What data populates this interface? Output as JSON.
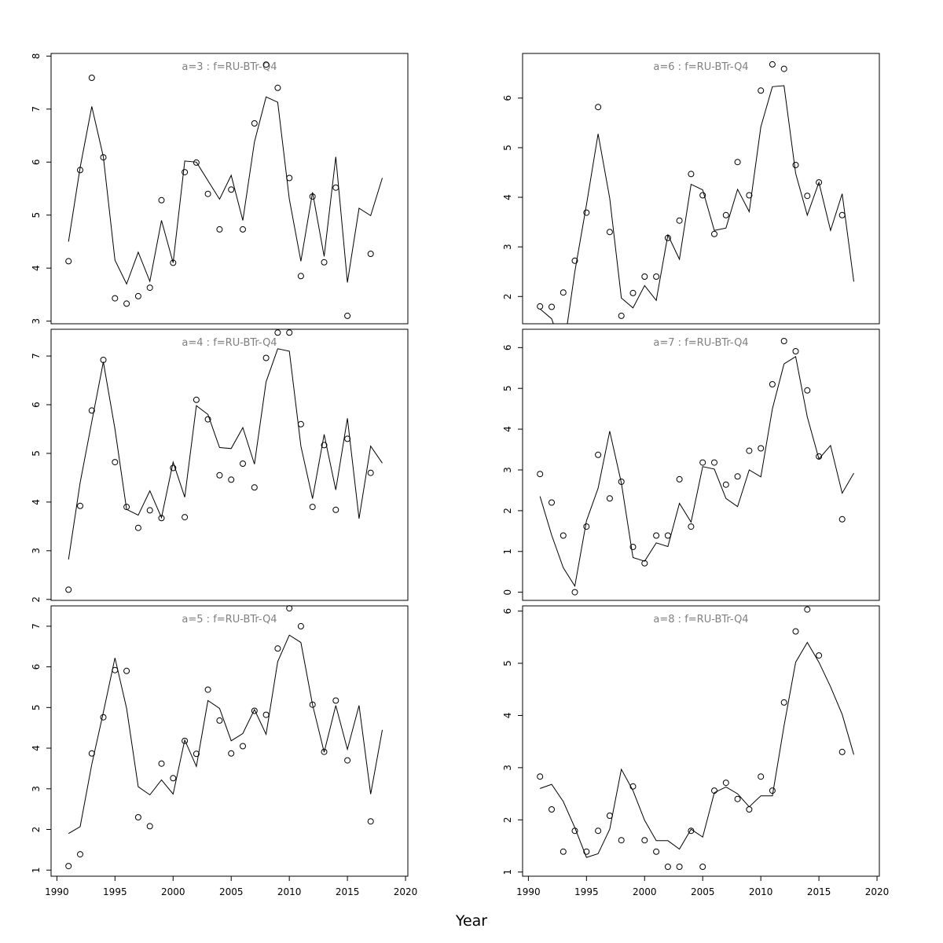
{
  "chart_data": {
    "type": "line",
    "xlabel": "Year",
    "xticks": [
      1990,
      1995,
      2000,
      2005,
      2010,
      2015,
      2020
    ],
    "xlim": [
      1989.5,
      2020.2
    ],
    "panels": [
      {
        "title": "a=3  :  f=RU-BTr-Q4",
        "ylim": [
          2.95,
          8.05
        ],
        "yticks": [
          3,
          4,
          5,
          6,
          7,
          8
        ],
        "series": [
          {
            "type": "line",
            "x": [
              1991,
              1992,
              1993,
              1994,
              1995,
              1996,
              1997,
              1998,
              1999,
              2000,
              2001,
              2002,
              2003,
              2004,
              2005,
              2006,
              2007,
              2008,
              2009,
              2010,
              2011,
              2012,
              2013,
              2014,
              2015,
              2016,
              2017,
              2018
            ],
            "y": [
              4.5,
              5.9,
              7.05,
              6.1,
              4.15,
              3.7,
              4.3,
              3.75,
              4.9,
              4.1,
              6.02,
              6.0,
              5.65,
              5.3,
              5.75,
              4.9,
              6.38,
              7.23,
              7.13,
              5.3,
              4.13,
              5.43,
              4.22,
              6.1,
              3.73,
              5.13,
              4.99,
              5.7
            ]
          },
          {
            "type": "points",
            "x": [
              1991,
              1992,
              1993,
              1994,
              1995,
              1996,
              1997,
              1998,
              1999,
              2000,
              2001,
              2002,
              2003,
              2004,
              2005,
              2006,
              2007,
              2008,
              2009,
              2010,
              2011,
              2012,
              2013,
              2014,
              2015,
              2017
            ],
            "y": [
              4.13,
              5.85,
              7.59,
              6.09,
              3.43,
              3.33,
              3.47,
              3.63,
              5.28,
              4.1,
              5.81,
              5.99,
              5.4,
              4.73,
              5.48,
              4.73,
              6.73,
              7.84,
              7.4,
              5.7,
              3.85,
              5.35,
              4.11,
              5.52,
              3.1,
              4.27
            ]
          }
        ]
      },
      {
        "title": "a=4  :  f=RU-BTr-Q4",
        "ylim": [
          1.98,
          7.55
        ],
        "yticks": [
          2,
          3,
          4,
          5,
          6,
          7
        ],
        "series": [
          {
            "type": "line",
            "x": [
              1991,
              1992,
              1993,
              1994,
              1995,
              1996,
              1997,
              1998,
              1999,
              2000,
              2001,
              2002,
              2003,
              2004,
              2005,
              2006,
              2007,
              2008,
              2009,
              2010,
              2011,
              2012,
              2013,
              2014,
              2015,
              2016,
              2017,
              2018
            ],
            "y": [
              2.82,
              4.4,
              5.65,
              6.88,
              5.5,
              3.85,
              3.73,
              4.23,
              3.68,
              4.82,
              4.1,
              5.98,
              5.8,
              5.12,
              5.1,
              5.53,
              4.78,
              6.47,
              7.15,
              7.1,
              5.15,
              4.07,
              5.39,
              4.25,
              5.72,
              3.66,
              5.15,
              4.8
            ]
          },
          {
            "type": "points",
            "x": [
              1991,
              1992,
              1993,
              1994,
              1995,
              1996,
              1997,
              1998,
              1999,
              2000,
              2001,
              2002,
              2003,
              2004,
              2005,
              2006,
              2007,
              2008,
              2009,
              2010,
              2011,
              2012,
              2013,
              2014,
              2015,
              2017
            ],
            "y": [
              2.2,
              3.92,
              5.88,
              6.92,
              4.82,
              3.9,
              3.47,
              3.83,
              3.67,
              4.7,
              3.69,
              6.1,
              5.7,
              4.55,
              4.46,
              4.79,
              4.3,
              6.96,
              7.48,
              7.48,
              5.6,
              3.9,
              5.17,
              3.84,
              5.3,
              4.6
            ]
          }
        ]
      },
      {
        "title": "a=5  :  f=RU-BTr-Q4",
        "ylim": [
          0.85,
          7.5
        ],
        "yticks": [
          1,
          2,
          3,
          4,
          5,
          6,
          7
        ],
        "series": [
          {
            "type": "line",
            "x": [
              1991,
              1992,
              1993,
              1994,
              1995,
              1996,
              1997,
              1998,
              1999,
              2000,
              2001,
              2002,
              2003,
              2004,
              2005,
              2006,
              2007,
              2008,
              2009,
              2010,
              2011,
              2012,
              2013,
              2014,
              2015,
              2016,
              2017,
              2018
            ],
            "y": [
              1.9,
              2.07,
              3.6,
              4.88,
              6.22,
              4.98,
              3.05,
              2.85,
              3.22,
              2.87,
              4.2,
              3.55,
              5.17,
              4.98,
              4.18,
              4.36,
              4.95,
              4.34,
              6.13,
              6.78,
              6.6,
              5.07,
              3.9,
              5.05,
              3.97,
              5.05,
              2.87,
              4.45
            ]
          },
          {
            "type": "points",
            "x": [
              1991,
              1992,
              1993,
              1994,
              1995,
              1996,
              1997,
              1998,
              1999,
              2000,
              2001,
              2002,
              2003,
              2004,
              2005,
              2006,
              2007,
              2008,
              2009,
              2010,
              2011,
              2012,
              2013,
              2014,
              2015,
              2017
            ],
            "y": [
              1.1,
              1.39,
              3.87,
              4.76,
              5.92,
              5.9,
              2.3,
              2.08,
              3.62,
              3.26,
              4.18,
              3.86,
              5.44,
              4.68,
              3.87,
              4.05,
              4.92,
              4.82,
              6.45,
              7.44,
              7.0,
              5.07,
              3.91,
              5.17,
              3.7,
              2.2
            ]
          }
        ]
      },
      {
        "title": "a=6  :  f=RU-BTr-Q4",
        "ylim": [
          1.45,
          6.9
        ],
        "yticks": [
          2,
          3,
          4,
          5,
          6
        ],
        "series": [
          {
            "type": "line",
            "x": [
              1991,
              1992,
              1993,
              1994,
              1995,
              1996,
              1997,
              1998,
              1999,
              2000,
              2001,
              2002,
              2003,
              2004,
              2005,
              2006,
              2007,
              2008,
              2009,
              2010,
              2011,
              2012,
              2013,
              2014,
              2015,
              2016,
              2017,
              2018
            ],
            "y": [
              1.75,
              1.55,
              0.88,
              2.5,
              3.85,
              5.28,
              3.98,
              1.97,
              1.77,
              2.22,
              1.92,
              3.24,
              2.75,
              4.26,
              4.15,
              3.33,
              3.38,
              4.16,
              3.71,
              5.42,
              6.23,
              6.25,
              4.48,
              3.64,
              4.3,
              3.33,
              4.07,
              2.3
            ]
          },
          {
            "type": "points",
            "x": [
              1991,
              1992,
              1993,
              1994,
              1995,
              1996,
              1997,
              1998,
              1999,
              2000,
              2001,
              2002,
              2003,
              2004,
              2005,
              2006,
              2007,
              2008,
              2009,
              2010,
              2011,
              2012,
              2013,
              2014,
              2015,
              2017
            ],
            "y": [
              1.8,
              1.79,
              2.08,
              2.72,
              3.69,
              5.82,
              3.3,
              1.61,
              2.07,
              2.4,
              2.4,
              3.18,
              3.53,
              4.47,
              4.04,
              3.26,
              3.64,
              4.71,
              4.04,
              6.15,
              6.68,
              6.59,
              4.65,
              4.03,
              4.3,
              3.64
            ]
          }
        ]
      },
      {
        "title": "a=7  :  f=RU-BTr-Q4",
        "ylim": [
          -0.2,
          6.45
        ],
        "yticks": [
          0,
          1,
          2,
          3,
          4,
          5,
          6
        ],
        "series": [
          {
            "type": "line",
            "x": [
              1991,
              1992,
              1993,
              1994,
              1995,
              1996,
              1997,
              1998,
              1999,
              2000,
              2001,
              2002,
              2003,
              2004,
              2005,
              2006,
              2007,
              2008,
              2009,
              2010,
              2011,
              2012,
              2013,
              2014,
              2015,
              2016,
              2017,
              2018
            ],
            "y": [
              2.35,
              1.4,
              0.6,
              0.15,
              1.75,
              2.55,
              3.95,
              2.68,
              0.85,
              0.76,
              1.21,
              1.12,
              2.18,
              1.72,
              3.08,
              3.02,
              2.3,
              2.1,
              3.0,
              2.83,
              4.5,
              5.6,
              5.78,
              4.3,
              3.27,
              3.6,
              2.43,
              2.92
            ]
          },
          {
            "type": "points",
            "x": [
              1991,
              1992,
              1993,
              1994,
              1995,
              1996,
              1997,
              1998,
              1999,
              2000,
              2001,
              2002,
              2003,
              2004,
              2005,
              2006,
              2007,
              2008,
              2009,
              2010,
              2011,
              2012,
              2013,
              2014,
              2015,
              2017
            ],
            "y": [
              2.9,
              2.2,
              1.39,
              0.0,
              1.61,
              3.37,
              2.3,
              2.71,
              1.11,
              0.71,
              1.39,
              1.39,
              2.77,
              1.61,
              3.18,
              3.18,
              2.64,
              2.84,
              3.47,
              3.53,
              5.1,
              6.16,
              5.91,
              4.95,
              3.33,
              1.79
            ]
          }
        ]
      },
      {
        "title": "a=8  :  f=RU-BTr-Q4",
        "ylim": [
          0.92,
          6.1
        ],
        "yticks": [
          1,
          2,
          3,
          4,
          5,
          6
        ],
        "series": [
          {
            "type": "line",
            "x": [
              1991,
              1992,
              1993,
              1994,
              1995,
              1996,
              1997,
              1998,
              1999,
              2000,
              2001,
              2002,
              2003,
              2004,
              2005,
              2006,
              2007,
              2008,
              2009,
              2010,
              2011,
              2012,
              2013,
              2014,
              2015,
              2016,
              2017,
              2018
            ],
            "y": [
              2.6,
              2.68,
              2.35,
              1.85,
              1.28,
              1.35,
              1.82,
              2.97,
              2.56,
              1.99,
              1.6,
              1.6,
              1.44,
              1.82,
              1.67,
              2.52,
              2.63,
              2.5,
              2.25,
              2.46,
              2.46,
              3.8,
              5.02,
              5.4,
              5.02,
              4.55,
              4.02,
              3.25
            ]
          },
          {
            "type": "points",
            "x": [
              1991,
              1992,
              1993,
              1994,
              1995,
              1996,
              1997,
              1998,
              1999,
              2000,
              2001,
              2002,
              2003,
              2004,
              2005,
              2006,
              2007,
              2008,
              2009,
              2010,
              2011,
              2012,
              2013,
              2014,
              2015,
              2017
            ],
            "y": [
              2.83,
              2.2,
              1.39,
              1.79,
              1.39,
              1.79,
              2.08,
              1.61,
              2.64,
              1.61,
              1.39,
              1.1,
              1.1,
              1.79,
              1.1,
              2.56,
              2.71,
              2.4,
              2.2,
              2.83,
              2.56,
              4.25,
              5.61,
              6.03,
              5.15,
              3.3
            ]
          }
        ]
      }
    ]
  }
}
